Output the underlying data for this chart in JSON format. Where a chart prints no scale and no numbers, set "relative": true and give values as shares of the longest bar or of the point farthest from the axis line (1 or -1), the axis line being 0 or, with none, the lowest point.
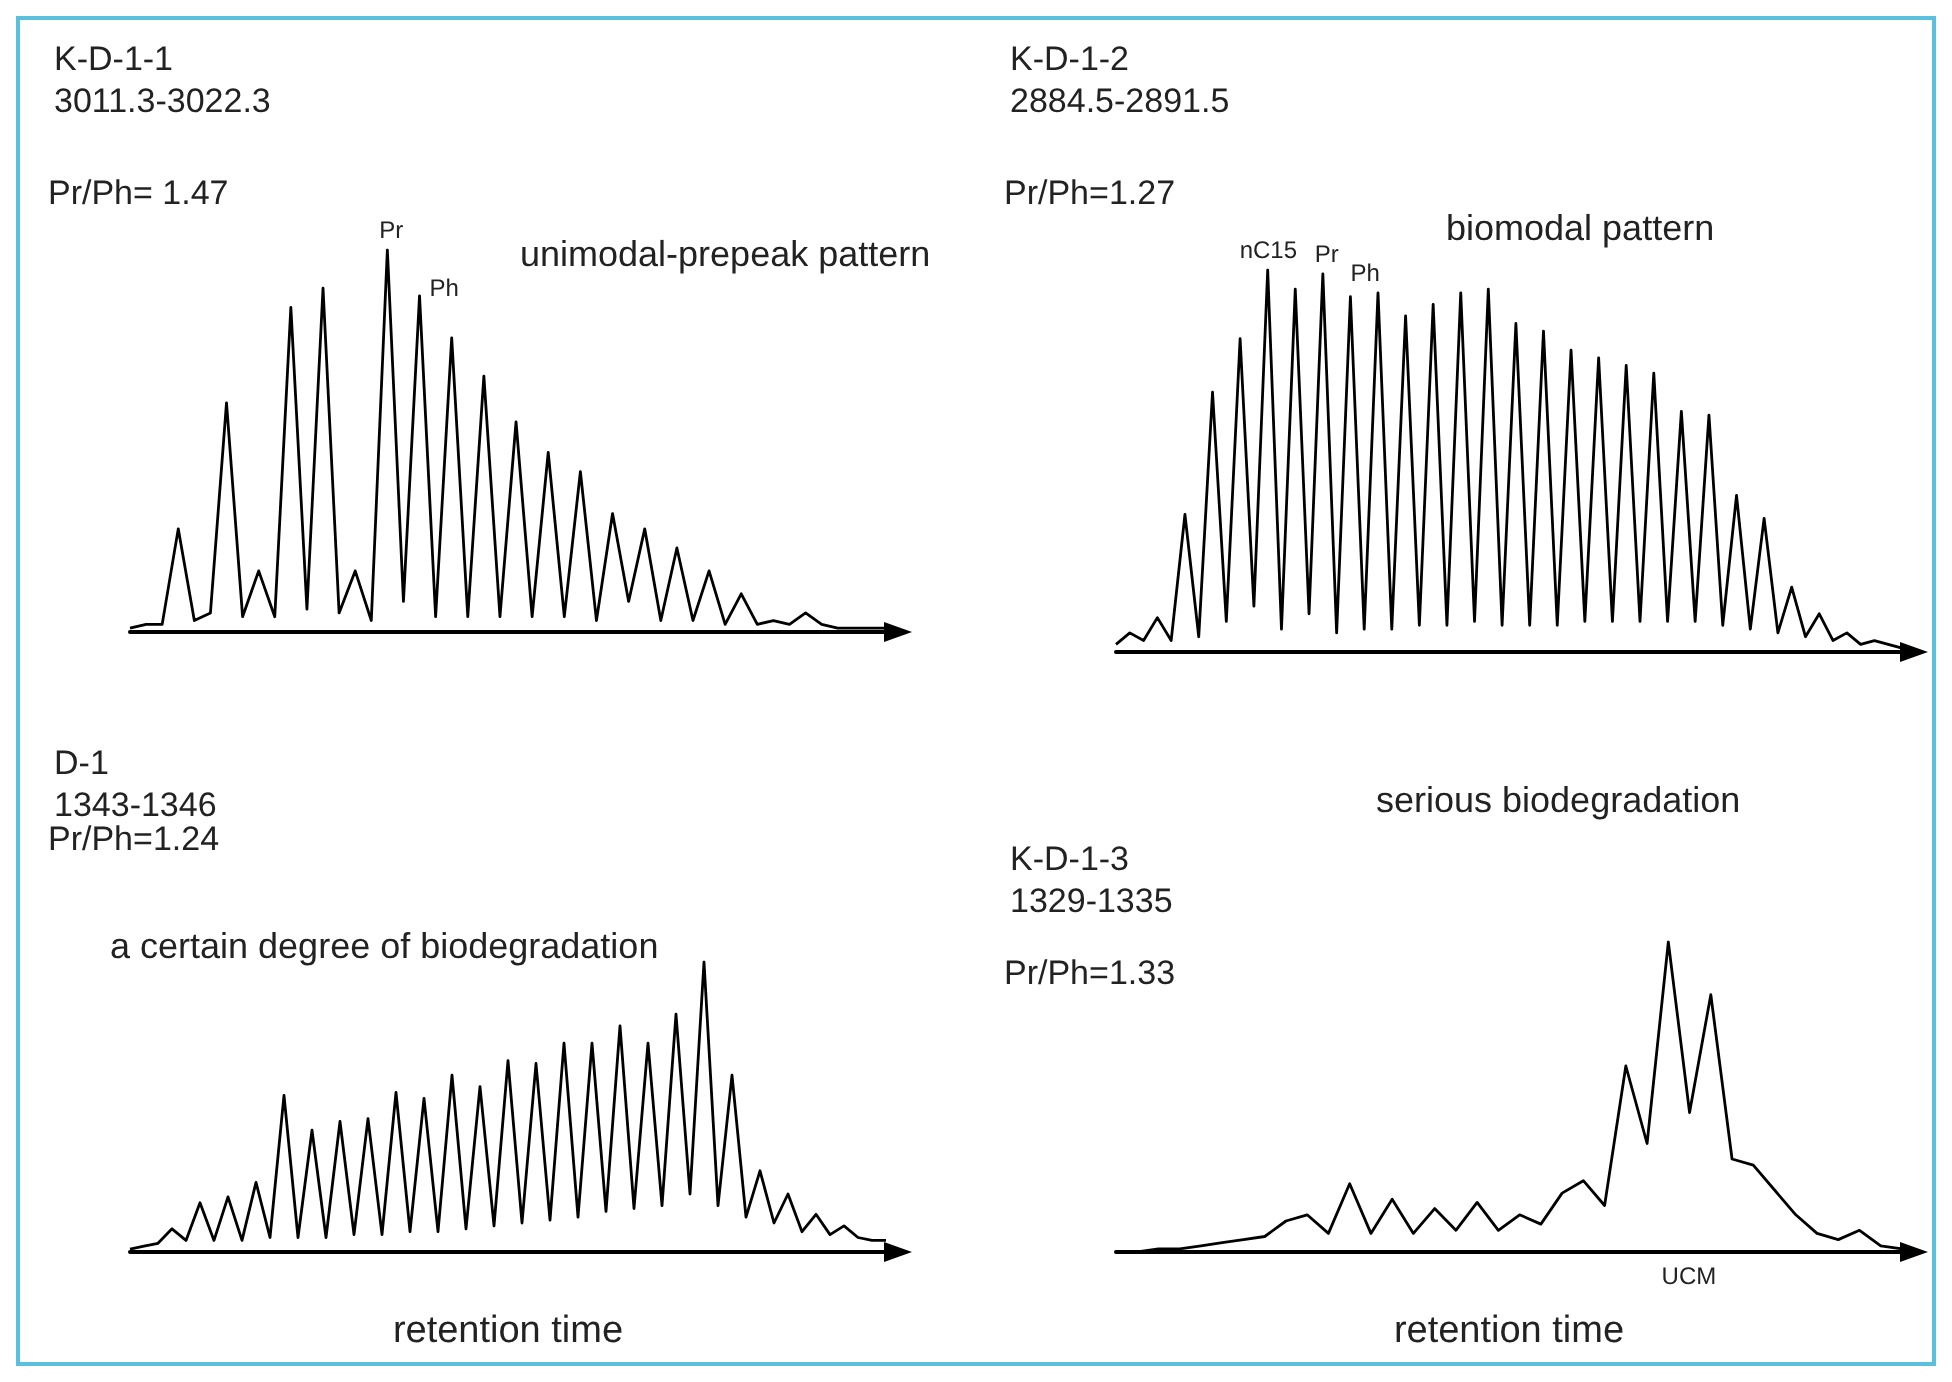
{
  "chart_data": [
    {
      "type": "line",
      "title": "K-D-1-1",
      "subtitle": "3011.3-3022.3",
      "annotations": [
        "Pr/Ph= 1.47",
        "unimodal-prepeak pattern",
        "Pr",
        "Ph"
      ],
      "relative": true,
      "marker": "none",
      "categories": [
        null,
        null,
        null,
        null,
        null,
        null,
        null,
        null,
        null,
        null,
        null,
        null,
        null,
        null,
        null,
        null,
        null,
        null,
        null,
        null,
        null,
        null,
        null,
        null,
        null,
        null,
        null,
        null,
        null,
        null,
        null,
        null,
        null,
        null,
        null,
        null,
        null,
        null,
        null,
        null,
        null,
        null,
        null,
        null,
        null,
        null,
        null,
        null
      ],
      "series": [
        {
          "color": "#000000",
          "values": [
            0.01,
            0.02,
            0.02,
            0.27,
            0.03,
            0.05,
            0.6,
            0.04,
            0.16,
            0.04,
            0.85,
            0.06,
            0.9,
            0.05,
            0.16,
            0.03,
            1,
            0.08,
            0.88,
            0.04,
            0.77,
            0.04,
            0.67,
            0.04,
            0.55,
            0.04,
            0.47,
            0.04,
            0.42,
            0.03,
            0.31,
            0.08,
            0.27,
            0.03,
            0.22,
            0.03,
            0.16,
            0.02,
            0.1,
            0.02,
            0.03,
            0.02,
            0.05,
            0.02,
            0.01,
            0.01,
            0.01,
            0.01
          ]
        }
      ]
    },
    {
      "type": "line",
      "title": "K-D-1-2",
      "subtitle": "2884.5-2891.5",
      "annotations": [
        "Pr/Ph=1.27",
        "biomodal pattern",
        "nC15",
        "Pr",
        "Ph"
      ],
      "relative": true,
      "marker": "none",
      "categories": [
        null,
        null,
        null,
        null,
        null,
        null,
        null,
        null,
        null,
        null,
        null,
        null,
        null,
        null,
        null,
        null,
        null,
        null,
        null,
        null,
        null,
        null,
        null,
        null,
        null,
        null,
        null,
        null,
        null,
        null,
        null,
        null,
        null,
        null,
        null,
        null,
        null,
        null,
        null,
        null,
        null,
        null,
        null,
        null,
        null,
        null,
        null,
        null,
        null,
        null,
        null,
        null,
        null,
        null,
        null,
        null,
        null,
        null
      ],
      "series": [
        {
          "color": "#000000",
          "values": [
            0.02,
            0.05,
            0.03,
            0.09,
            0.03,
            0.36,
            0.04,
            0.68,
            0.08,
            0.82,
            0.12,
            1,
            0.06,
            0.95,
            0.1,
            0.99,
            0.05,
            0.93,
            0.06,
            0.94,
            0.06,
            0.88,
            0.07,
            0.91,
            0.07,
            0.94,
            0.08,
            0.95,
            0.07,
            0.86,
            0.07,
            0.84,
            0.07,
            0.79,
            0.08,
            0.77,
            0.08,
            0.75,
            0.08,
            0.73,
            0.08,
            0.63,
            0.08,
            0.62,
            0.07,
            0.41,
            0.06,
            0.35,
            0.05,
            0.17,
            0.04,
            0.1,
            0.03,
            0.05,
            0.02,
            0.03,
            0.02,
            0.01
          ]
        }
      ]
    },
    {
      "type": "line",
      "title": "D-1",
      "subtitle": "1343-1346",
      "xlabel": "retention time",
      "annotations": [
        "Pr/Ph=1.24",
        "a certain degree of biodegradation"
      ],
      "relative": true,
      "marker": "none",
      "categories": [
        null,
        null,
        null,
        null,
        null,
        null,
        null,
        null,
        null,
        null,
        null,
        null,
        null,
        null,
        null,
        null,
        null,
        null,
        null,
        null,
        null,
        null,
        null,
        null,
        null,
        null,
        null,
        null,
        null,
        null,
        null,
        null,
        null,
        null,
        null,
        null,
        null,
        null,
        null,
        null,
        null,
        null,
        null,
        null,
        null,
        null,
        null,
        null,
        null,
        null,
        null,
        null,
        null,
        null,
        null
      ],
      "series": [
        {
          "color": "#000000",
          "values": [
            0.01,
            0.02,
            0.03,
            0.08,
            0.04,
            0.17,
            0.04,
            0.19,
            0.04,
            0.24,
            0.05,
            0.54,
            0.05,
            0.42,
            0.05,
            0.45,
            0.06,
            0.46,
            0.06,
            0.55,
            0.07,
            0.53,
            0.07,
            0.61,
            0.08,
            0.57,
            0.09,
            0.66,
            0.1,
            0.65,
            0.11,
            0.72,
            0.12,
            0.72,
            0.14,
            0.78,
            0.15,
            0.72,
            0.16,
            0.82,
            0.2,
            1,
            0.16,
            0.61,
            0.12,
            0.28,
            0.1,
            0.2,
            0.07,
            0.13,
            0.06,
            0.09,
            0.05,
            0.04,
            0.04
          ]
        }
      ]
    },
    {
      "type": "line",
      "title": "K-D-1-3",
      "subtitle": "1329-1335",
      "xlabel": "retention time",
      "annotations": [
        "Pr/Ph=1.33",
        "serious biodegradation",
        "UCM"
      ],
      "relative": true,
      "marker": "none",
      "categories": [
        null,
        null,
        null,
        null,
        null,
        null,
        null,
        null,
        null,
        null,
        null,
        null,
        null,
        null,
        null,
        null,
        null,
        null,
        null,
        null,
        null,
        null,
        null,
        null,
        null,
        null,
        null,
        null,
        null,
        null,
        null,
        null,
        null,
        null,
        null,
        null,
        null,
        null
      ],
      "series": [
        {
          "color": "#000000",
          "values": [
            0,
            0,
            0.01,
            0.01,
            0.02,
            0.03,
            0.04,
            0.05,
            0.1,
            0.12,
            0.06,
            0.22,
            0.06,
            0.17,
            0.06,
            0.14,
            0.07,
            0.16,
            0.07,
            0.12,
            0.09,
            0.19,
            0.23,
            0.15,
            0.6,
            0.35,
            1,
            0.45,
            0.83,
            0.3,
            0.28,
            0.2,
            0.12,
            0.06,
            0.04,
            0.07,
            0.02,
            0.01
          ]
        }
      ]
    }
  ]
}
